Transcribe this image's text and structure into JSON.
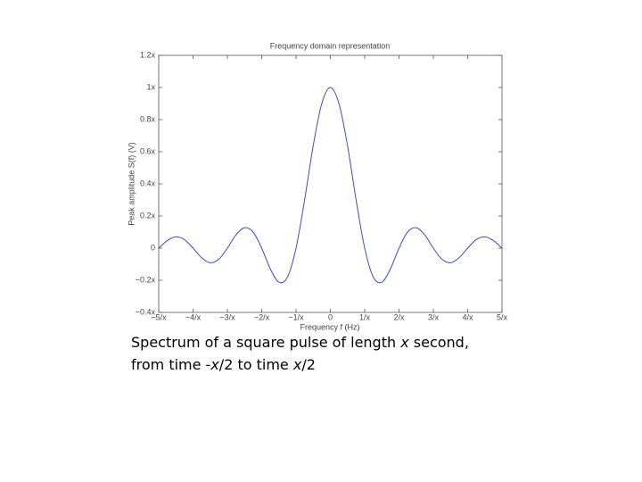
{
  "chart_data": {
    "type": "line",
    "title": "Frequency domain representation",
    "x_label": "Frequency f (Hz)",
    "y_label": "Peak amplitude S(f) (V)",
    "x": [
      -5,
      -4.75,
      -4.5,
      -4.25,
      -4,
      -3.75,
      -3.5,
      -3.25,
      -3,
      -2.75,
      -2.5,
      -2.25,
      -2,
      -1.75,
      -1.5,
      -1.25,
      -1,
      -0.75,
      -0.5,
      -0.25,
      0,
      0.25,
      0.5,
      0.75,
      1,
      1.25,
      1.5,
      1.75,
      2,
      2.25,
      2.5,
      2.75,
      3,
      3.25,
      3.5,
      3.75,
      4,
      4.25,
      4.5,
      4.75,
      5
    ],
    "series": [
      {
        "color": "#3a4fc0",
        "values": [
          0,
          0.047,
          0.071,
          0.053,
          0,
          -0.06,
          -0.091,
          -0.069,
          0,
          0.082,
          0.127,
          0.1,
          0,
          -0.129,
          -0.212,
          -0.18,
          0,
          0.3,
          0.637,
          0.9,
          1,
          0.9,
          0.637,
          0.3,
          0,
          -0.18,
          -0.212,
          -0.129,
          0,
          0.1,
          0.127,
          0.082,
          0,
          -0.069,
          -0.091,
          -0.06,
          0,
          0.053,
          0.071,
          0.047,
          0
        ]
      }
    ],
    "xlim": [
      -5,
      5
    ],
    "ylim": [
      -0.4,
      1.2
    ],
    "xticks": [
      {
        "value": -5,
        "label": "−5/x"
      },
      {
        "value": -4,
        "label": "−4/x"
      },
      {
        "value": -3,
        "label": "−3/x"
      },
      {
        "value": -2,
        "label": "−2/x"
      },
      {
        "value": -1,
        "label": "−1/x"
      },
      0,
      {
        "value": 1,
        "label": "1/x"
      },
      {
        "value": 2,
        "label": "2/x"
      },
      {
        "value": 3,
        "label": "3/x"
      },
      {
        "value": 4,
        "label": "4/x"
      },
      {
        "value": 5,
        "label": "5/x"
      }
    ],
    "yticks": [
      {
        "value": -0.4,
        "label": "−0.4x"
      },
      {
        "value": -0.2,
        "label": "−0.2x"
      },
      0,
      {
        "value": 0.2,
        "label": "0.2x"
      },
      {
        "value": 0.4,
        "label": "0.4x"
      },
      {
        "value": 0.6,
        "label": "0.6x"
      },
      {
        "value": 0.8,
        "label": "0.8x"
      },
      {
        "value": 1,
        "label": "1x"
      },
      {
        "value": 1.2,
        "label": "1.2x"
      }
    ],
    "grid": false
  },
  "caption": {
    "line1": [
      "Spectrum of a square pulse of length ",
      "x",
      " second,"
    ],
    "line2": [
      "from time -",
      "x",
      "/2 to time ",
      "x",
      "/2"
    ]
  }
}
